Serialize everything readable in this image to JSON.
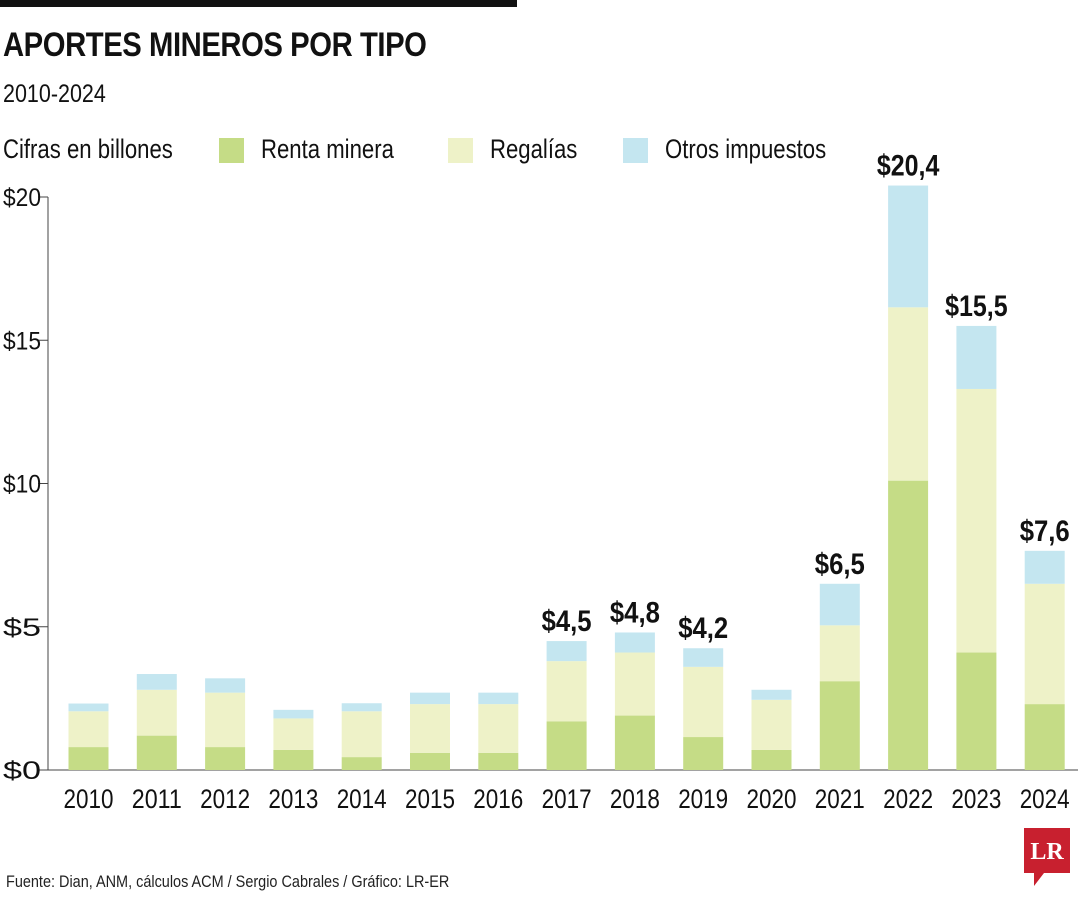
{
  "header": {
    "title": "APORTES MINEROS POR TIPO",
    "subtitle": "2010-2024",
    "unit_label": "Cifras en billones"
  },
  "legend": [
    {
      "label": "Renta minera",
      "color": "#c5dc86"
    },
    {
      "label": "Regalías",
      "color": "#eef2c8"
    },
    {
      "label": "Otros impuestos",
      "color": "#c4e6f0"
    }
  ],
  "footer": {
    "source": "Fuente: Dian, ANM, cálculos ACM / Sergio Cabrales / Gráfico: LR-ER",
    "logo_text": "LR",
    "logo_color": "#c8202f"
  },
  "chart_data": {
    "type": "bar",
    "stacked": true,
    "title": "APORTES MINEROS POR TIPO",
    "subtitle": "2010-2024",
    "ylabel": "Cifras en billones",
    "xlabel": "",
    "ylim": [
      0,
      20
    ],
    "yticks": [
      0,
      5,
      10,
      15,
      20
    ],
    "ytick_labels": [
      "$0",
      "$5",
      "$10",
      "$15",
      "$20"
    ],
    "categories": [
      "2010",
      "2011",
      "2012",
      "2013",
      "2014",
      "2015",
      "2016",
      "2017",
      "2018",
      "2019",
      "2020",
      "2021",
      "2022",
      "2023",
      "2024"
    ],
    "series": [
      {
        "name": "Renta minera",
        "color": "#c5dc86",
        "values": [
          0.8,
          1.2,
          0.8,
          0.7,
          0.45,
          0.6,
          0.6,
          1.7,
          1.9,
          1.15,
          0.7,
          3.1,
          10.1,
          4.1,
          2.3
        ]
      },
      {
        "name": "Regalías",
        "color": "#eef2c8",
        "values": [
          1.25,
          1.6,
          1.9,
          1.1,
          1.6,
          1.7,
          1.7,
          2.1,
          2.2,
          2.45,
          1.75,
          1.95,
          6.05,
          9.2,
          4.2
        ]
      },
      {
        "name": "Otros impuestos",
        "color": "#c4e6f0",
        "values": [
          0.27,
          0.55,
          0.5,
          0.3,
          0.28,
          0.4,
          0.4,
          0.7,
          0.7,
          0.65,
          0.35,
          1.45,
          4.25,
          2.2,
          1.15
        ]
      }
    ],
    "total_labels": [
      {
        "category": "2017",
        "label": "$4,5"
      },
      {
        "category": "2018",
        "label": "$4,8"
      },
      {
        "category": "2019",
        "label": "$4,2"
      },
      {
        "category": "2021",
        "label": "$6,5"
      },
      {
        "category": "2022",
        "label": "$20,4"
      },
      {
        "category": "2023",
        "label": "$15,5"
      },
      {
        "category": "2024",
        "label": "$7,6"
      }
    ]
  }
}
